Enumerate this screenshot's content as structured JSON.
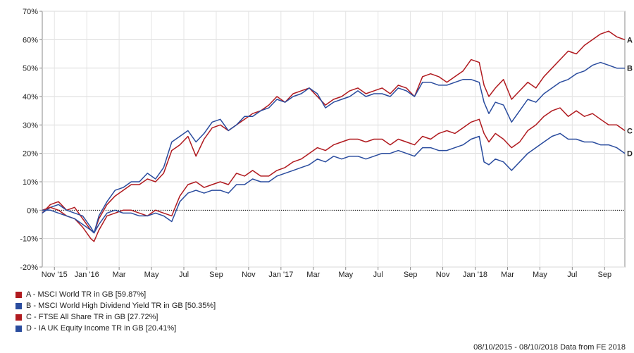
{
  "chart_data": {
    "type": "line",
    "ylim": [
      -20,
      70
    ],
    "y_ticks": [
      "-20%",
      "-10%",
      "0%",
      "10%",
      "20%",
      "30%",
      "40%",
      "50%",
      "60%",
      "70%"
    ],
    "x_ticks": [
      "Nov '15",
      "Jan '16",
      "Mar",
      "May",
      "Jul",
      "Sep",
      "Nov",
      "Jan '17",
      "Mar",
      "May",
      "Jul",
      "Sep",
      "Nov",
      "Jan '18",
      "Mar",
      "May",
      "Jul",
      "Sep"
    ],
    "x_tick_months": [
      0.75,
      2.75,
      4.75,
      6.75,
      8.75,
      10.75,
      12.75,
      14.75,
      16.75,
      18.75,
      20.75,
      22.75,
      24.75,
      26.75,
      28.75,
      30.75,
      32.75,
      34.75
    ],
    "x_range_months": [
      0,
      36
    ],
    "grid": true,
    "baseline": 0,
    "series": [
      {
        "label": "A",
        "legend": "A - MSCI World TR in GB [59.87%]",
        "color": "#b01a1f",
        "x": [
          0,
          0.5,
          1,
          1.5,
          2,
          2.5,
          3,
          3.2,
          3.5,
          4,
          4.5,
          5,
          5.5,
          6,
          6.5,
          7,
          7.5,
          8,
          8.5,
          9,
          9.5,
          10,
          10.5,
          11,
          11.5,
          12,
          12.5,
          13,
          13.5,
          14,
          14.5,
          15,
          15.5,
          16,
          16.5,
          17,
          17.5,
          18,
          18.5,
          19,
          19.5,
          20,
          20.5,
          21,
          21.5,
          22,
          22.5,
          23,
          23.5,
          24,
          24.5,
          25,
          25.5,
          26,
          26.5,
          27,
          27.3,
          27.6,
          28,
          28.5,
          29,
          29.5,
          30,
          30.5,
          31,
          31.5,
          32,
          32.5,
          33,
          33.5,
          34,
          34.5,
          35,
          35.5,
          36
        ],
        "y": [
          -1,
          2,
          3,
          0,
          1,
          -3,
          -7,
          -8,
          -3,
          2,
          5,
          7,
          9,
          9,
          11,
          10,
          13,
          21,
          23,
          26,
          19,
          25,
          29,
          30,
          28,
          30,
          32,
          34,
          35,
          37,
          40,
          38,
          41,
          42,
          43,
          40,
          37,
          39,
          40,
          42,
          43,
          41,
          42,
          43,
          41,
          44,
          43,
          40,
          47,
          48,
          47,
          45,
          47,
          49,
          53,
          52,
          44,
          40,
          43,
          46,
          39,
          42,
          45,
          43,
          47,
          50,
          53,
          56,
          55,
          58,
          60,
          62,
          63,
          61,
          60
        ]
      },
      {
        "label": "B",
        "legend": "B - MSCI World High Dividend Yield TR in GB [50.35%]",
        "color": "#2a4c9e",
        "x": [
          0,
          0.5,
          1,
          1.5,
          2,
          2.5,
          3,
          3.2,
          3.5,
          4,
          4.5,
          5,
          5.5,
          6,
          6.5,
          7,
          7.5,
          8,
          8.5,
          9,
          9.5,
          10,
          10.5,
          11,
          11.5,
          12,
          12.5,
          13,
          13.5,
          14,
          14.5,
          15,
          15.5,
          16,
          16.5,
          17,
          17.5,
          18,
          18.5,
          19,
          19.5,
          20,
          20.5,
          21,
          21.5,
          22,
          22.5,
          23,
          23.5,
          24,
          24.5,
          25,
          25.5,
          26,
          26.5,
          27,
          27.3,
          27.6,
          28,
          28.5,
          29,
          29.5,
          30,
          30.5,
          31,
          31.5,
          32,
          32.5,
          33,
          33.5,
          34,
          34.5,
          35,
          35.5,
          36
        ],
        "y": [
          -1,
          1,
          2,
          0,
          -1,
          -2,
          -6,
          -8,
          -2,
          3,
          7,
          8,
          10,
          10,
          13,
          11,
          15,
          24,
          26,
          28,
          24,
          27,
          31,
          32,
          28,
          30,
          33,
          33,
          35,
          36,
          39,
          38,
          40,
          41,
          43,
          41,
          36,
          38,
          39,
          40,
          42,
          40,
          41,
          41,
          40,
          43,
          42,
          40,
          45,
          45,
          44,
          44,
          45,
          46,
          46,
          45,
          38,
          34,
          38,
          37,
          31,
          35,
          39,
          38,
          41,
          43,
          45,
          46,
          48,
          49,
          51,
          52,
          51,
          50,
          50
        ]
      },
      {
        "label": "C",
        "legend": "C - FTSE All Share TR in GB [27.72%]",
        "color": "#b01a1f",
        "x": [
          0,
          0.5,
          1,
          1.5,
          2,
          2.5,
          3,
          3.2,
          3.5,
          4,
          4.5,
          5,
          5.5,
          6,
          6.5,
          7,
          7.5,
          8,
          8.5,
          9,
          9.5,
          10,
          10.5,
          11,
          11.5,
          12,
          12.5,
          13,
          13.5,
          14,
          14.5,
          15,
          15.5,
          16,
          16.5,
          17,
          17.5,
          18,
          18.5,
          19,
          19.5,
          20,
          20.5,
          21,
          21.5,
          22,
          22.5,
          23,
          23.5,
          24,
          24.5,
          25,
          25.5,
          26,
          26.5,
          27,
          27.3,
          27.6,
          28,
          28.5,
          29,
          29.5,
          30,
          30.5,
          31,
          31.5,
          32,
          32.5,
          33,
          33.5,
          34,
          34.5,
          35,
          35.5,
          36
        ],
        "y": [
          0,
          1,
          0,
          -2,
          -3,
          -6,
          -10,
          -11,
          -7,
          -2,
          -1,
          0,
          0,
          -1,
          -2,
          0,
          -1,
          -2,
          5,
          9,
          10,
          8,
          9,
          10,
          9,
          13,
          12,
          14,
          12,
          12,
          14,
          15,
          17,
          18,
          20,
          22,
          21,
          23,
          24,
          25,
          25,
          24,
          25,
          25,
          23,
          25,
          24,
          23,
          26,
          25,
          27,
          28,
          27,
          29,
          31,
          32,
          27,
          24,
          27,
          25,
          22,
          24,
          28,
          30,
          33,
          35,
          36,
          33,
          35,
          33,
          34,
          32,
          30,
          30,
          28
        ]
      },
      {
        "label": "D",
        "legend": "D - IA UK Equity Income TR in GB [20.41%]",
        "color": "#2a4c9e",
        "x": [
          0,
          0.5,
          1,
          1.5,
          2,
          2.5,
          3,
          3.2,
          3.5,
          4,
          4.5,
          5,
          5.5,
          6,
          6.5,
          7,
          7.5,
          8,
          8.5,
          9,
          9.5,
          10,
          10.5,
          11,
          11.5,
          12,
          12.5,
          13,
          13.5,
          14,
          14.5,
          15,
          15.5,
          16,
          16.5,
          17,
          17.5,
          18,
          18.5,
          19,
          19.5,
          20,
          20.5,
          21,
          21.5,
          22,
          22.5,
          23,
          23.5,
          24,
          24.5,
          25,
          25.5,
          26,
          26.5,
          27,
          27.3,
          27.6,
          28,
          28.5,
          29,
          29.5,
          30,
          30.5,
          31,
          31.5,
          32,
          32.5,
          33,
          33.5,
          34,
          34.5,
          35,
          35.5,
          36
        ],
        "y": [
          0,
          0,
          -1,
          -2,
          -3,
          -5,
          -7,
          -8,
          -5,
          -1,
          0,
          -1,
          -1,
          -2,
          -2,
          -1,
          -2,
          -4,
          3,
          6,
          7,
          6,
          7,
          7,
          6,
          9,
          9,
          11,
          10,
          10,
          12,
          13,
          14,
          15,
          16,
          18,
          17,
          19,
          18,
          19,
          19,
          18,
          19,
          20,
          20,
          21,
          20,
          19,
          22,
          22,
          21,
          21,
          22,
          23,
          25,
          26,
          17,
          16,
          18,
          17,
          14,
          17,
          20,
          22,
          24,
          26,
          27,
          25,
          25,
          24,
          24,
          23,
          23,
          22,
          20
        ]
      }
    ]
  },
  "footer": "08/10/2015 - 08/10/2018 Data from FE 2018"
}
